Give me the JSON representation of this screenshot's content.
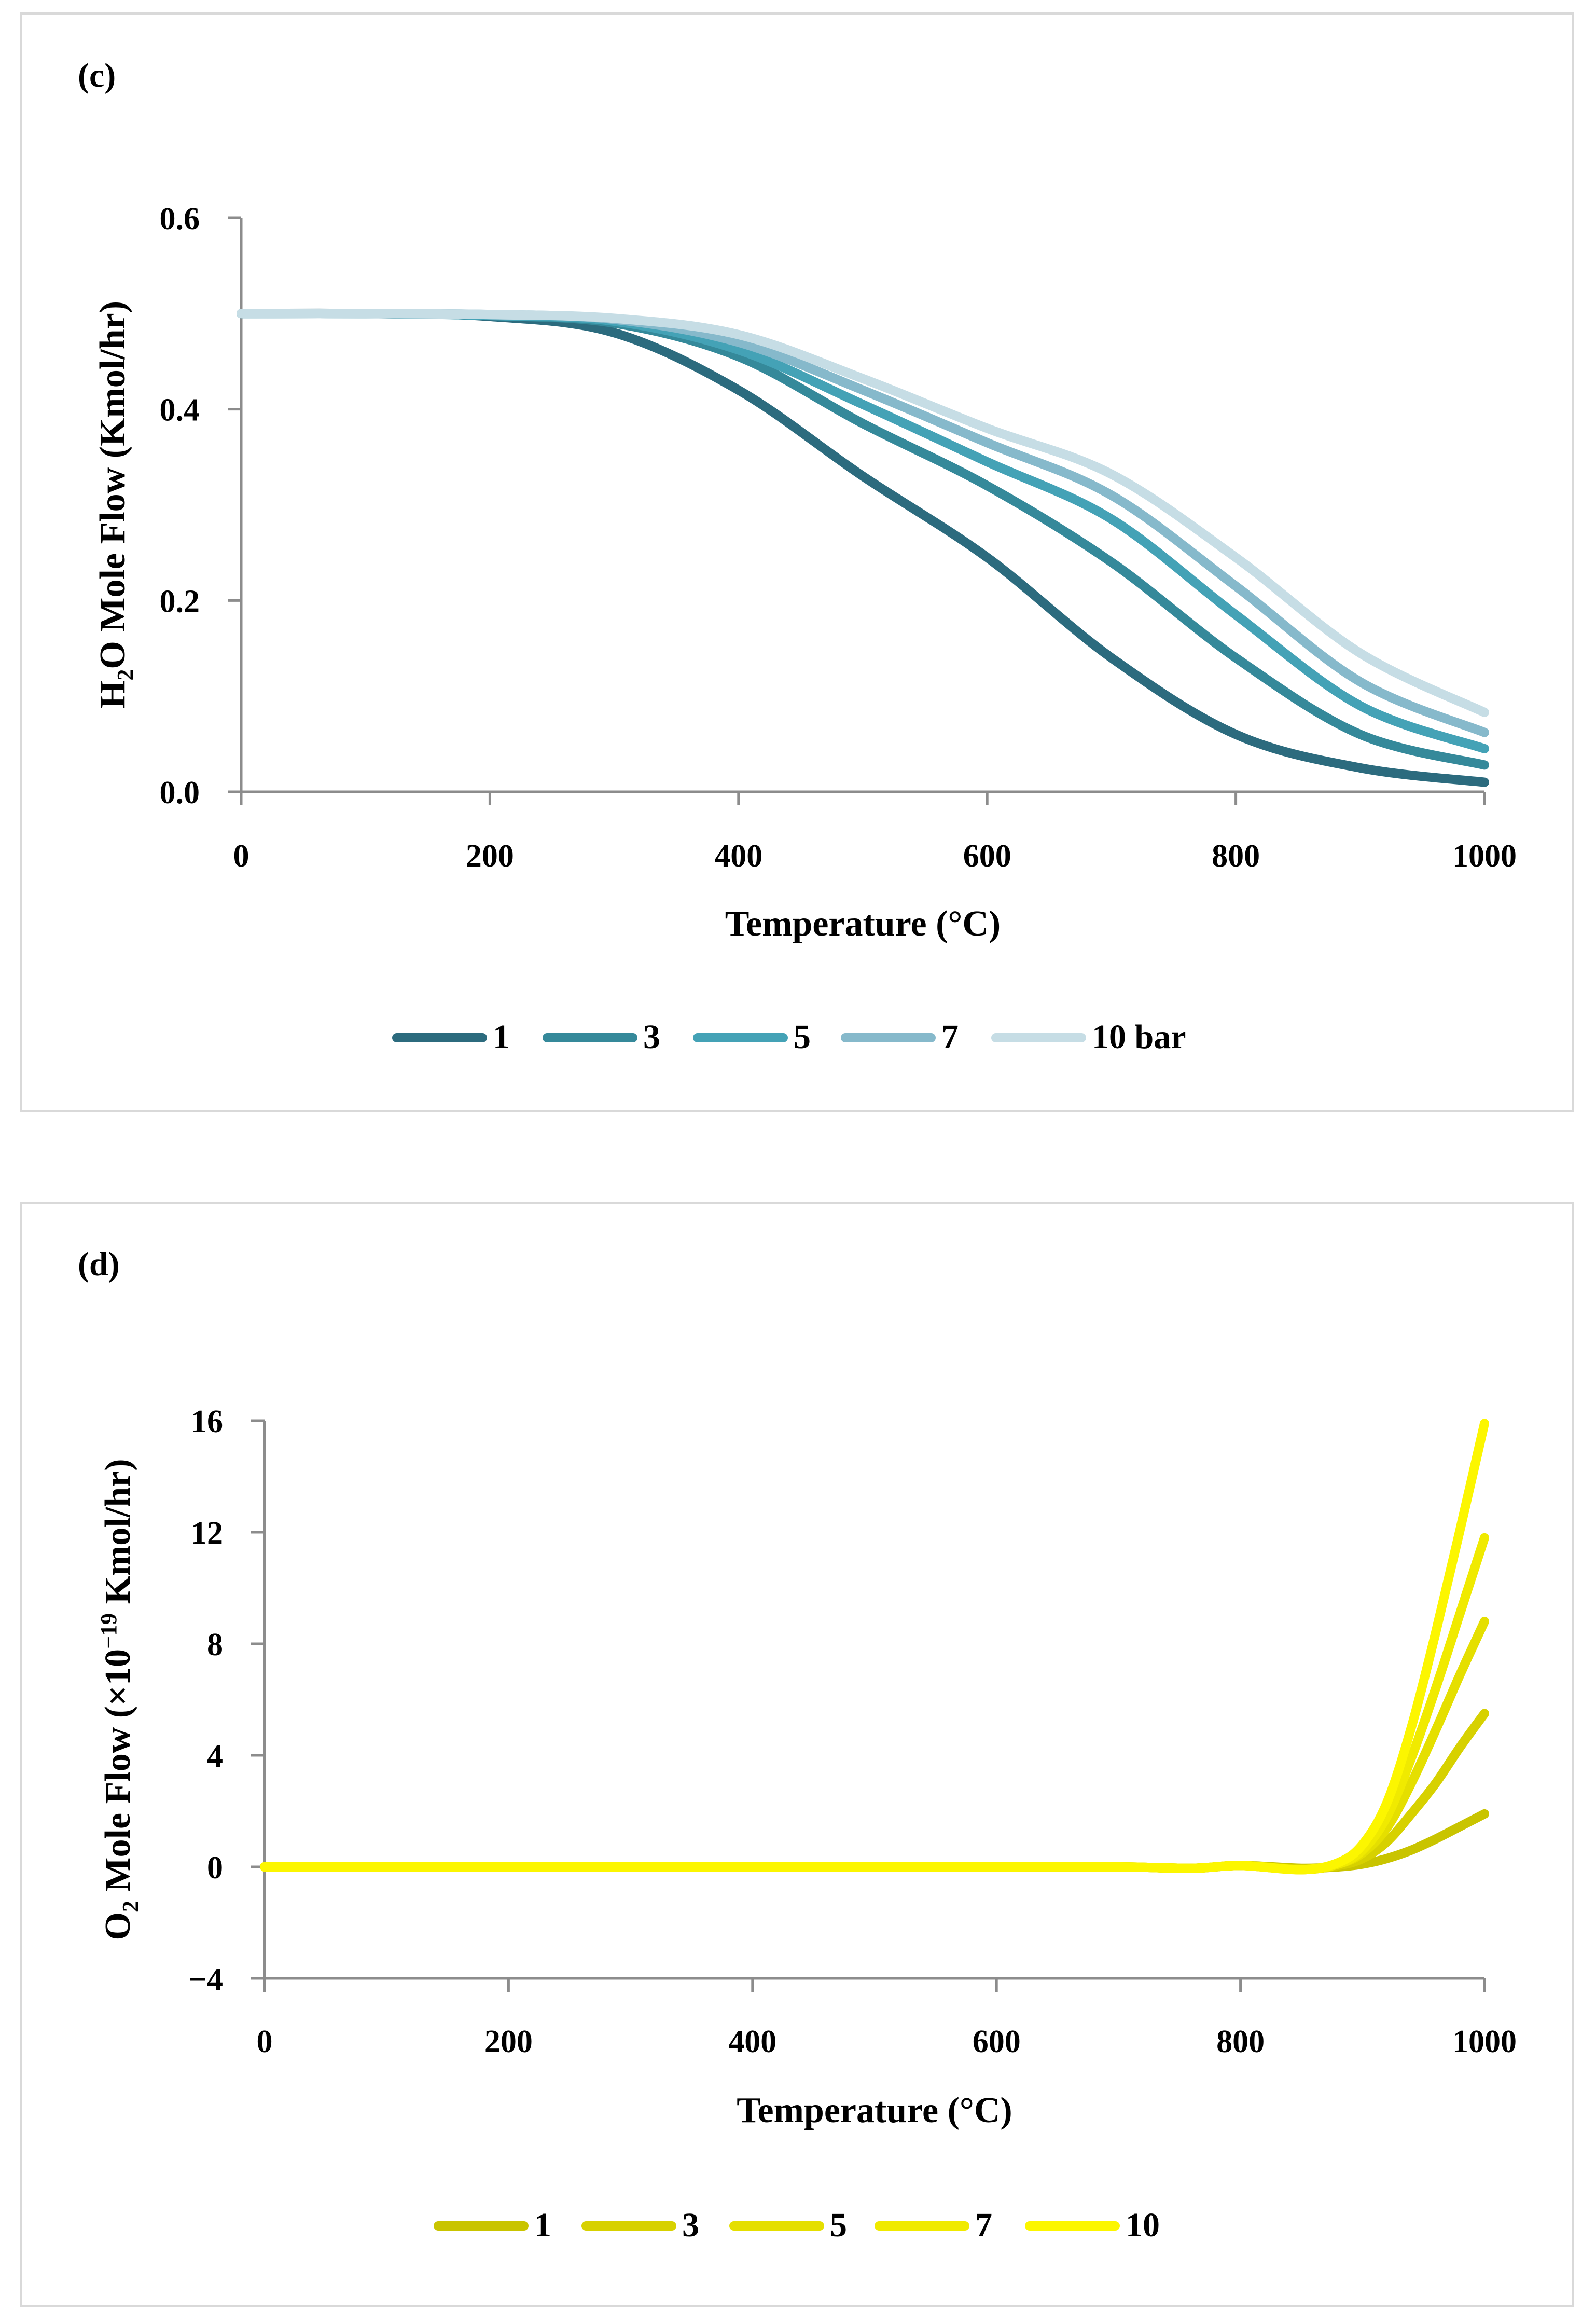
{
  "colors": {
    "c": [
      "#2c6b7e",
      "#35899a",
      "#44a2b6",
      "#86b9cb",
      "#c6dde5"
    ],
    "d": [
      "#c9c400",
      "#d7d100",
      "#e5df00",
      "#f0ea00",
      "#fcf600"
    ],
    "axis": "#8c8c8c",
    "frame": "#d9d9d9"
  },
  "chart_data": [
    {
      "panel_label": "(c)",
      "type": "line",
      "title": "",
      "xlabel": "Temperature (°C)",
      "ylabel_parts": [
        "H",
        "2",
        "O Mole Flow (Kmol/hr)"
      ],
      "xlim": [
        0,
        1000
      ],
      "ylim": [
        0,
        0.6
      ],
      "xticks": [
        "0",
        "200",
        "400",
        "600",
        "800",
        "1000"
      ],
      "yticks": [
        "0.0",
        "0.2",
        "0.4",
        "0.6"
      ],
      "grid": false,
      "legend_position": "bottom",
      "x": [
        0,
        100,
        200,
        300,
        400,
        500,
        600,
        700,
        800,
        900,
        1000
      ],
      "series": [
        {
          "name": "1",
          "values": [
            0.5,
            0.5,
            0.497,
            0.48,
            0.42,
            0.33,
            0.245,
            0.14,
            0.06,
            0.025,
            0.01
          ]
        },
        {
          "name": "3",
          "values": [
            0.5,
            0.5,
            0.498,
            0.49,
            0.455,
            0.385,
            0.32,
            0.24,
            0.14,
            0.06,
            0.028
          ]
        },
        {
          "name": "5",
          "values": [
            0.5,
            0.5,
            0.498,
            0.492,
            0.462,
            0.405,
            0.345,
            0.285,
            0.185,
            0.09,
            0.045
          ]
        },
        {
          "name": "7",
          "values": [
            0.5,
            0.5,
            0.499,
            0.494,
            0.47,
            0.42,
            0.365,
            0.31,
            0.215,
            0.115,
            0.062
          ]
        },
        {
          "name": "10 bar",
          "values": [
            0.5,
            0.5,
            0.499,
            0.495,
            0.478,
            0.432,
            0.38,
            0.332,
            0.245,
            0.145,
            0.083
          ]
        }
      ]
    },
    {
      "panel_label": "(d)",
      "type": "line",
      "title": "",
      "xlabel": "Temperature (°C)",
      "ylabel_parts": [
        "O",
        "2",
        " Mole Flow (×10",
        "−19",
        " Kmol/hr)"
      ],
      "xlim": [
        0,
        1000
      ],
      "ylim": [
        -4,
        16
      ],
      "xticks": [
        "0",
        "200",
        "400",
        "600",
        "800",
        "1000"
      ],
      "yticks": [
        "−4",
        "0",
        "4",
        "8",
        "12",
        "16"
      ],
      "grid": false,
      "legend_position": "bottom",
      "x": [
        0,
        100,
        200,
        300,
        400,
        500,
        600,
        700,
        760,
        800,
        850,
        880,
        900,
        920,
        940,
        960,
        980,
        1000
      ],
      "series": [
        {
          "name": "1",
          "values": [
            0,
            0,
            0,
            0,
            0,
            0,
            0,
            0,
            -0.05,
            0.05,
            -0.05,
            0.0,
            0.1,
            0.3,
            0.6,
            1.0,
            1.45,
            1.9
          ]
        },
        {
          "name": "3",
          "values": [
            0,
            0,
            0,
            0,
            0,
            0,
            0,
            0,
            -0.05,
            0.05,
            -0.08,
            0.05,
            0.3,
            0.9,
            1.9,
            3.0,
            4.3,
            5.5
          ]
        },
        {
          "name": "5",
          "values": [
            0,
            0,
            0,
            0,
            0,
            0,
            0,
            0,
            -0.05,
            0.05,
            -0.1,
            0.1,
            0.5,
            1.4,
            3.0,
            4.9,
            6.9,
            8.8
          ]
        },
        {
          "name": "7",
          "values": [
            0,
            0,
            0,
            0,
            0,
            0,
            0,
            0,
            -0.05,
            0.05,
            -0.1,
            0.1,
            0.6,
            1.8,
            3.9,
            6.4,
            9.1,
            11.8
          ]
        },
        {
          "name": "10",
          "values": [
            0,
            0,
            0,
            0,
            0,
            0,
            0,
            0,
            -0.05,
            0.05,
            -0.1,
            0.15,
            0.8,
            2.3,
            5.0,
            8.4,
            12.1,
            15.9
          ]
        }
      ]
    }
  ]
}
